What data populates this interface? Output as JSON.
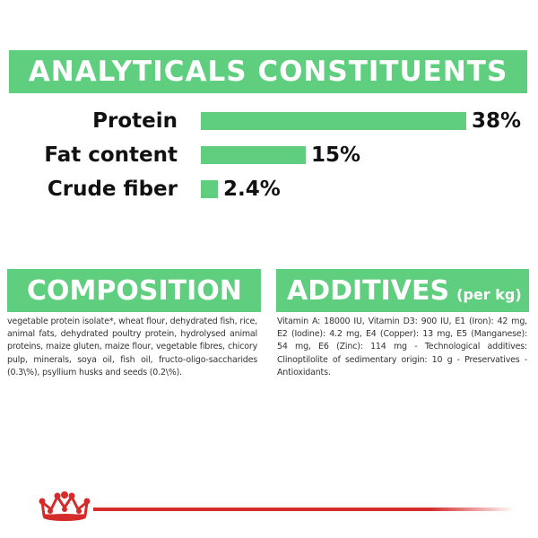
{
  "analytics": {
    "title": "ANALYTICALS CONSTITUENTS",
    "rows": [
      {
        "label": "Protein",
        "value_text": "38%",
        "value": 38
      },
      {
        "label": "Fat content",
        "value_text": "15%",
        "value": 15
      },
      {
        "label": "Crude fiber",
        "value_text": "2.4%",
        "value": 2.4
      }
    ],
    "bar_color": "#5fcf7f"
  },
  "composition": {
    "title": "COMPOSITION",
    "text": "vegetable protein isolate*, wheat flour, dehydrated fish, rice, animal fats, dehydrated poultry protein, hydrolysed animal proteins, maize gluten, maize flour, vegetable fibres, chicory pulp, minerals, soya oil, fish oil, fructo-oligo-saccharides (0.3\\%), psyllium husks and seeds (0.2\\%)."
  },
  "additives": {
    "title": "ADDITIVES",
    "subtitle": "(per kg)",
    "text": "Vitamin A: 18000 IU, Vitamin D3: 900 IU, E1 (Iron): 42 mg, E2 (Iodine): 4.2 mg, E4 (Copper): 13 mg, E5 (Manganese): 54 mg, E6 (Zinc): 114 mg - Technological additives: Clinoptilolite of sedimentary origin: 10 g - Preservatives - Antioxidants."
  },
  "footer": {
    "logo_icon": "crown-logo-icon",
    "accent_color": "#d52b2b"
  }
}
